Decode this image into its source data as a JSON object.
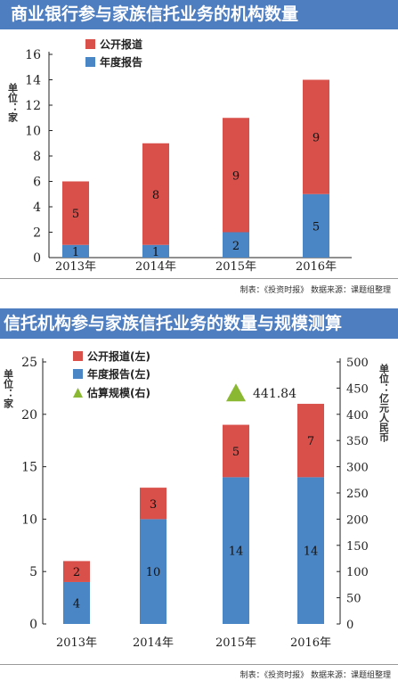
{
  "banner1": "商业银行参与家族信托业务的机构数量",
  "banner2": "信托机构参与家族信托业务的数量与规模测算",
  "credit1": "制表：《投资时报》 数据来源：课题组整理",
  "credit2": "制表：《投资时报》 数据来源：课题组整理",
  "colors": {
    "public": "#d94f4a",
    "annual": "#4a86c5",
    "scale": "#8bb832",
    "banner": "#4f7ec0"
  },
  "chart_data": [
    {
      "type": "bar",
      "stacked": true,
      "ylabel": "单位：家",
      "categories": [
        "2013年",
        "2014年",
        "2015年",
        "2016年"
      ],
      "series": [
        {
          "name": "年度报告",
          "values": [
            1,
            1,
            2,
            5
          ]
        },
        {
          "name": "公开报道",
          "values": [
            5,
            8,
            9,
            9
          ]
        }
      ],
      "yticks": [
        "0",
        "2",
        "4",
        "6",
        "8",
        "10",
        "12",
        "14",
        "16"
      ],
      "ylim": [
        0,
        16
      ],
      "legend_position": "top-left"
    },
    {
      "type": "bar",
      "stacked": true,
      "ylabel": "单位：家",
      "y2label": "单位：亿元人民币",
      "categories": [
        "2013年",
        "2014年",
        "2015年",
        "2016年"
      ],
      "series": [
        {
          "name": "年度报告(左)",
          "values": [
            4,
            10,
            14,
            14
          ]
        },
        {
          "name": "公开报道(左)",
          "values": [
            2,
            3,
            5,
            7
          ]
        }
      ],
      "scale": {
        "name": "估算规模(右)",
        "category": "2015年",
        "value": 441.84,
        "label": "441.84"
      },
      "yticks": [
        "0",
        "5",
        "10",
        "15",
        "20",
        "25"
      ],
      "ylim": [
        0,
        25
      ],
      "y2ticks": [
        "0",
        "50",
        "100",
        "150",
        "200",
        "250",
        "300",
        "350",
        "400",
        "450",
        "500"
      ],
      "y2lim": [
        0,
        500
      ],
      "legend_position": "top-left"
    }
  ]
}
